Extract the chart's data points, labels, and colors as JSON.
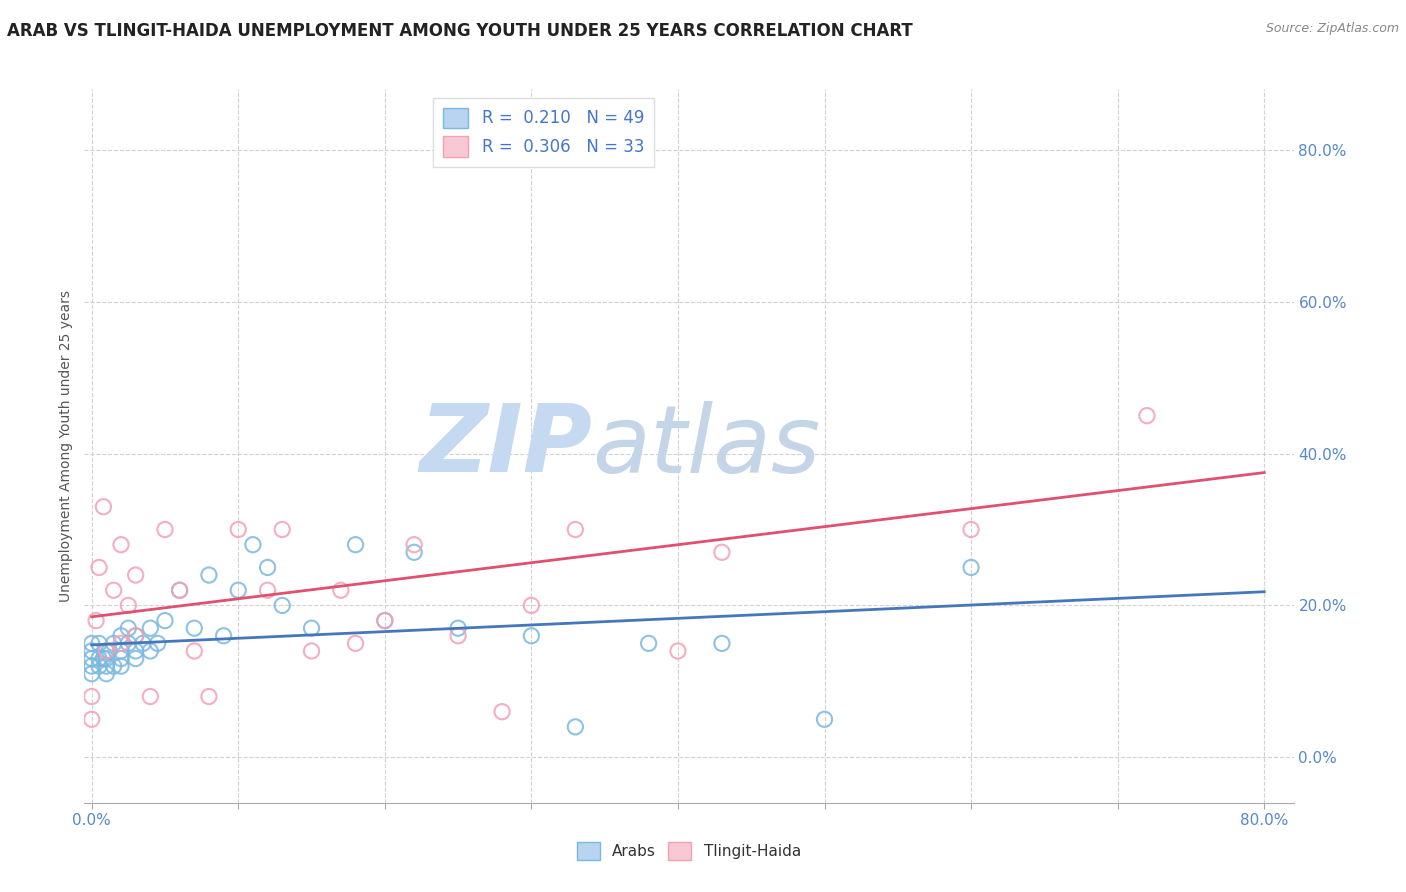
{
  "title": "ARAB VS TLINGIT-HAIDA UNEMPLOYMENT AMONG YOUTH UNDER 25 YEARS CORRELATION CHART",
  "source": "Source: ZipAtlas.com",
  "ylabel": "Unemployment Among Youth under 25 years",
  "xlim": [
    -0.005,
    0.82
  ],
  "ylim": [
    -0.06,
    0.88
  ],
  "x_ticks": [
    0.0,
    0.1,
    0.2,
    0.3,
    0.4,
    0.5,
    0.6,
    0.7,
    0.8
  ],
  "x_tick_labels": [
    "0.0%",
    "",
    "",
    "",
    "",
    "",
    "",
    "",
    "80.0%"
  ],
  "y_ticks": [
    0.0,
    0.2,
    0.4,
    0.6,
    0.8
  ],
  "y_tick_labels": [
    "0.0%",
    "20.0%",
    "40.0%",
    "60.0%",
    "80.0%"
  ],
  "arab_R": 0.21,
  "arab_N": 49,
  "tlingit_R": 0.306,
  "tlingit_N": 33,
  "arab_marker_color": "#7ab8e0",
  "arab_edge_color": "#7ab8e0",
  "tlingit_marker_color": "#f4a0b5",
  "tlingit_edge_color": "#f4a0b5",
  "trend_arab_color": "#4477bb",
  "trend_tlingit_color": "#e05070",
  "legend_text_color": "#4477cc",
  "watermark_zip_color": "#c5daf0",
  "watermark_atlas_color": "#c5d5e8",
  "background_color": "#ffffff",
  "grid_color": "#cccccc",
  "tick_label_color": "#5588cc",
  "arab_x": [
    0.0,
    0.0,
    0.0,
    0.0,
    0.0,
    0.005,
    0.005,
    0.005,
    0.008,
    0.01,
    0.01,
    0.01,
    0.01,
    0.012,
    0.015,
    0.015,
    0.02,
    0.02,
    0.02,
    0.02,
    0.025,
    0.025,
    0.03,
    0.03,
    0.03,
    0.035,
    0.04,
    0.04,
    0.045,
    0.05,
    0.06,
    0.07,
    0.08,
    0.09,
    0.1,
    0.11,
    0.12,
    0.13,
    0.15,
    0.18,
    0.2,
    0.22,
    0.25,
    0.3,
    0.33,
    0.38,
    0.43,
    0.5,
    0.6
  ],
  "arab_y": [
    0.11,
    0.12,
    0.13,
    0.14,
    0.15,
    0.12,
    0.13,
    0.15,
    0.13,
    0.11,
    0.12,
    0.13,
    0.14,
    0.14,
    0.12,
    0.15,
    0.12,
    0.13,
    0.14,
    0.16,
    0.15,
    0.17,
    0.13,
    0.14,
    0.16,
    0.15,
    0.14,
    0.17,
    0.15,
    0.18,
    0.22,
    0.17,
    0.24,
    0.16,
    0.22,
    0.28,
    0.25,
    0.2,
    0.17,
    0.28,
    0.18,
    0.27,
    0.17,
    0.16,
    0.04,
    0.15,
    0.15,
    0.05,
    0.25
  ],
  "tlingit_x": [
    0.0,
    0.0,
    0.003,
    0.005,
    0.008,
    0.01,
    0.015,
    0.02,
    0.02,
    0.025,
    0.03,
    0.03,
    0.04,
    0.05,
    0.06,
    0.07,
    0.08,
    0.1,
    0.12,
    0.13,
    0.15,
    0.17,
    0.18,
    0.2,
    0.22,
    0.25,
    0.28,
    0.3,
    0.33,
    0.4,
    0.43,
    0.6,
    0.72
  ],
  "tlingit_y": [
    0.05,
    0.08,
    0.18,
    0.25,
    0.33,
    0.14,
    0.22,
    0.15,
    0.28,
    0.2,
    0.16,
    0.24,
    0.08,
    0.3,
    0.22,
    0.14,
    0.08,
    0.3,
    0.22,
    0.3,
    0.14,
    0.22,
    0.15,
    0.18,
    0.28,
    0.16,
    0.06,
    0.2,
    0.3,
    0.14,
    0.27,
    0.3,
    0.45
  ],
  "arab_trend_y_start": 0.148,
  "arab_trend_y_end": 0.218,
  "tlingit_trend_y_start": 0.185,
  "tlingit_trend_y_end": 0.375,
  "marker_size": 120
}
